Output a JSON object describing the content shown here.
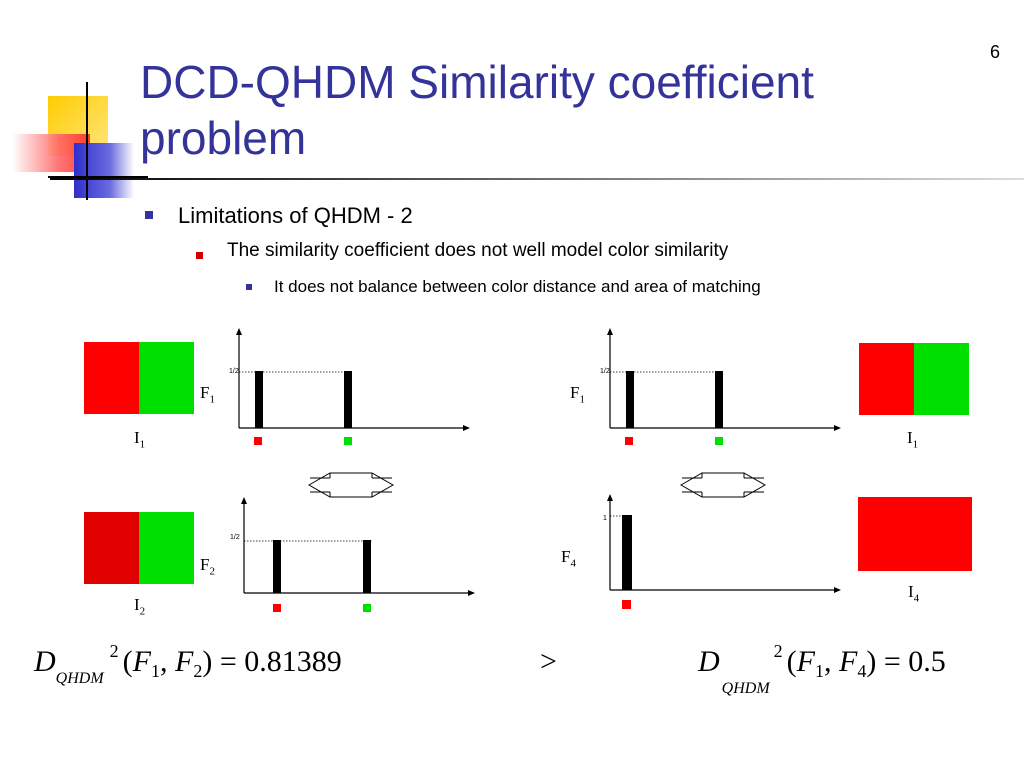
{
  "slide": {
    "number": "6",
    "title": "DCD-QHDM Similarity coefficient problem",
    "bullets": {
      "level1": "Limitations of QHDM - 2",
      "level2": "The similarity coefficient does not well model color similarity",
      "level3": "It does not balance between color distance and area of matching"
    }
  },
  "diagrams": {
    "tick_half": "1/2",
    "tick_one": "1",
    "images": {
      "i1_left": "I",
      "i1_left_sub": "1",
      "i2": "I",
      "i2_sub": "2",
      "i1_right": "I",
      "i1_right_sub": "1",
      "i4": "I",
      "i4_sub": "4"
    },
    "histograms": {
      "f1_left": "F",
      "f1_left_sub": "1",
      "f2": "F",
      "f2_sub": "2",
      "f1_right": "F",
      "f1_right_sub": "1",
      "f4": "F",
      "f4_sub": "4"
    },
    "colors": {
      "red": "#ff0000",
      "green": "#00e000",
      "dark_red": "#e00000",
      "bar": "#000000"
    }
  },
  "equations": {
    "left": {
      "d": "D",
      "sub": "QHDM",
      "sup": "2",
      "open": "(",
      "f1": "F",
      "f1_sub": "1",
      "comma": ",",
      "f2": "F",
      "f2_sub": "2",
      "close": ")",
      "equals": "=",
      "value": "0.81389"
    },
    "comparison": ">",
    "right": {
      "d": "D",
      "sub": "QHDM",
      "sup": "2",
      "open": "(",
      "f1": "F",
      "f1_sub": "1",
      "comma": ",",
      "f4": "F",
      "f4_sub": "4",
      "close": ")",
      "equals": "=",
      "value": "0.5"
    }
  }
}
